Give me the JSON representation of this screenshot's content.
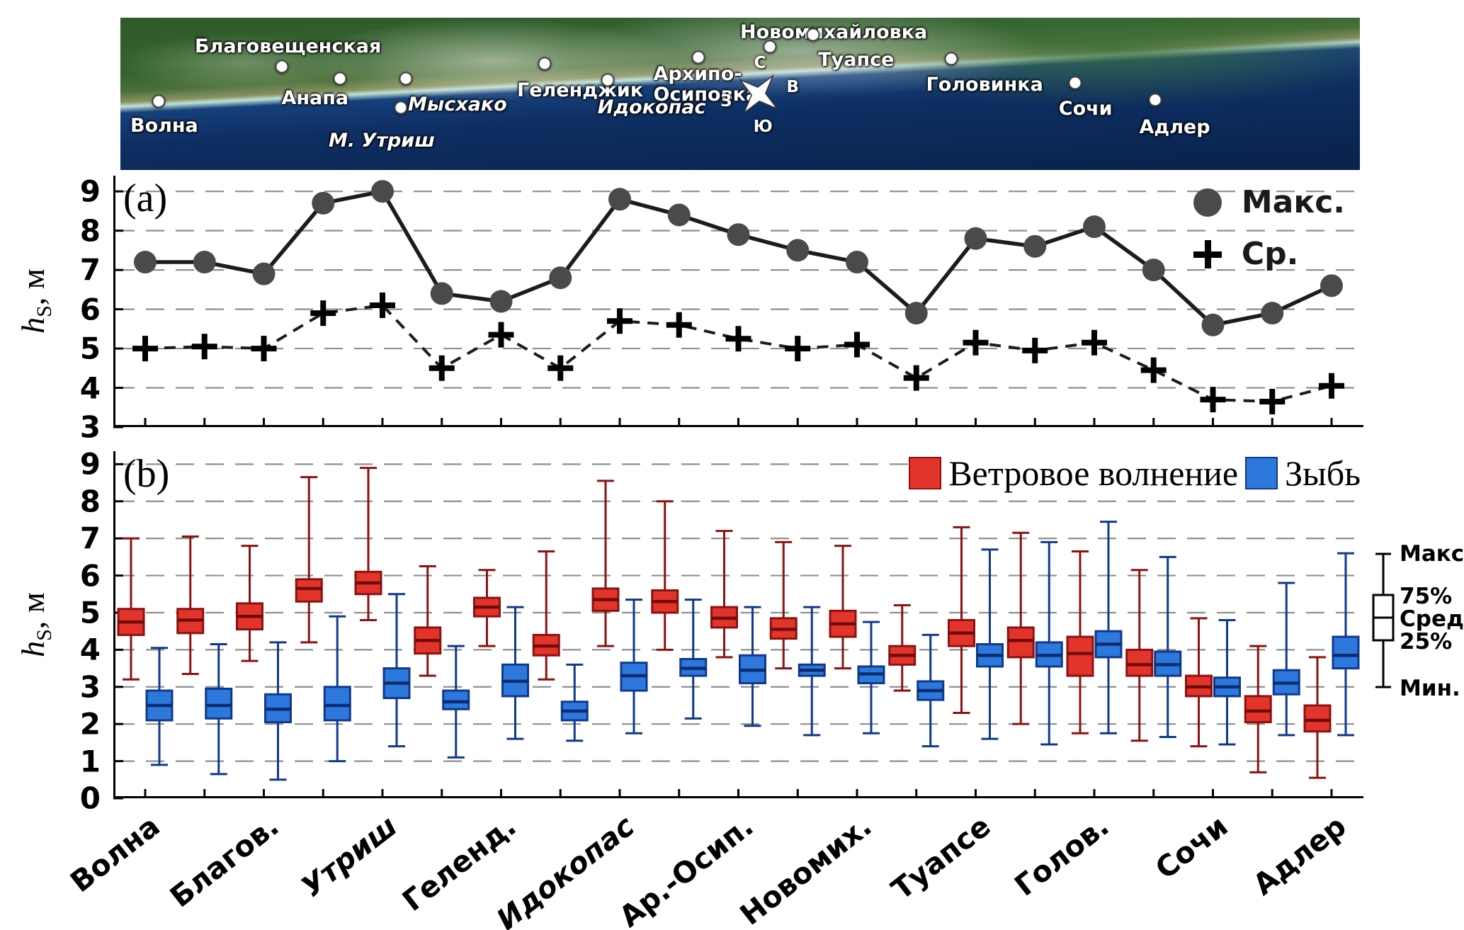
{
  "figure": {
    "panel_a_tag": "(a)",
    "panel_b_tag": "(b)",
    "y_h": "h",
    "y_sub": "S",
    "y_rest": ", м"
  },
  "map": {
    "compass": {
      "n": "С",
      "e": "В",
      "s": "Ю",
      "w": "З"
    },
    "places": [
      {
        "name": "Волна",
        "label": [
          0.8,
          64
        ],
        "dot": [
          3.1,
          55
        ],
        "italic": false
      },
      {
        "name": "Благовещенская",
        "label": [
          6.0,
          12
        ],
        "dot": [
          13.0,
          32
        ],
        "italic": false
      },
      {
        "name": "Анапа",
        "label": [
          13.0,
          46
        ],
        "dot": [
          17.7,
          40
        ],
        "italic": false
      },
      {
        "name": "М. Утриш",
        "label": [
          16.8,
          74
        ],
        "dot": [
          22.6,
          59
        ],
        "italic": true
      },
      {
        "name": "Мысхако",
        "label": [
          23.2,
          50
        ],
        "dot": [
          23.0,
          40
        ],
        "italic": true
      },
      {
        "name": "Геленджик",
        "label": [
          32.0,
          41
        ],
        "dot": [
          34.2,
          30
        ],
        "italic": false
      },
      {
        "name": "Идокопас",
        "label": [
          38.5,
          52
        ],
        "dot": [
          39.3,
          41
        ],
        "italic": true
      },
      {
        "name": "Архипо-\nОсиповка",
        "label": [
          43.0,
          30
        ],
        "dot": [
          46.6,
          26
        ],
        "italic": false
      },
      {
        "name": "Новомихайловка",
        "label": [
          50.0,
          3
        ],
        "dot": [
          52.4,
          19
        ],
        "italic": false
      },
      {
        "name": "Туапсе",
        "label": [
          56.3,
          21
        ],
        "dot": [
          55.9,
          11
        ],
        "italic": false
      },
      {
        "name": "Головинка",
        "label": [
          65.0,
          37
        ],
        "dot": [
          67.0,
          27
        ],
        "italic": false
      },
      {
        "name": "Сочи",
        "label": [
          75.7,
          53
        ],
        "dot": [
          77.0,
          43
        ],
        "italic": false
      },
      {
        "name": "Адлер",
        "label": [
          82.2,
          65
        ],
        "dot": [
          83.5,
          54
        ],
        "italic": false
      }
    ]
  },
  "boxkey": {
    "labels": [
      "Макс.",
      "75%",
      "Сред.",
      "25%",
      "Мин."
    ]
  },
  "chart_data": [
    {
      "id": "panel_a",
      "type": "line",
      "title": "(a)",
      "ylabel": "hS, м",
      "ylim": [
        3,
        9
      ],
      "yticks": [
        3,
        4,
        5,
        6,
        7,
        8,
        9
      ],
      "grid": "dashed-horizontal",
      "legend_position": "top-right",
      "x_note": "21 stations along the coast, aligned with panel (b) box-plot stations",
      "series": [
        {
          "name": "Макс.",
          "marker": "circle",
          "line": "solid",
          "color": "#4a4a4a",
          "values": [
            7.2,
            7.2,
            6.9,
            8.7,
            9.0,
            6.4,
            6.2,
            6.8,
            8.8,
            8.4,
            7.9,
            7.5,
            7.2,
            5.9,
            7.8,
            7.6,
            8.1,
            7.0,
            5.6,
            5.9,
            6.6
          ]
        },
        {
          "name": "Ср.",
          "marker": "plus",
          "line": "dashed",
          "color": "#000000",
          "values": [
            5.0,
            5.05,
            5.0,
            5.9,
            6.1,
            4.5,
            5.35,
            4.5,
            5.7,
            5.6,
            5.25,
            5.0,
            5.1,
            4.25,
            5.15,
            4.95,
            5.15,
            4.45,
            3.7,
            3.65,
            4.05
          ]
        }
      ]
    },
    {
      "id": "panel_b",
      "type": "boxplot",
      "title": "(b)",
      "ylabel": "hS, м",
      "ylim": [
        0,
        9
      ],
      "yticks": [
        0,
        1,
        2,
        3,
        4,
        5,
        6,
        7,
        8,
        9
      ],
      "grid": "dashed-horizontal",
      "legend_position": "top-right",
      "n_stations": 21,
      "label_every": 2,
      "box_value_order": [
        "min",
        "q25",
        "median",
        "q75",
        "max"
      ],
      "categories": [
        {
          "label": "Волна",
          "station": 0,
          "italic": false
        },
        {
          "label": "Благов.",
          "station": 2,
          "italic": false
        },
        {
          "label": "Утриш",
          "station": 4,
          "italic": true
        },
        {
          "label": "Геленд.",
          "station": 6,
          "italic": false
        },
        {
          "label": "Идокопас",
          "station": 8,
          "italic": true
        },
        {
          "label": "Ар.-Осип.",
          "station": 10,
          "italic": false
        },
        {
          "label": "Новомих.",
          "station": 12,
          "italic": false
        },
        {
          "label": "Туапсе",
          "station": 14,
          "italic": false
        },
        {
          "label": "Голов.",
          "station": 16,
          "italic": false
        },
        {
          "label": "Сочи",
          "station": 18,
          "italic": false
        },
        {
          "label": "Адлер",
          "station": 20,
          "italic": false
        }
      ],
      "series": [
        {
          "name": "Ветровое волнение",
          "color": "#e2342b",
          "edge": "#8c1210",
          "median": "#6f0c0a",
          "boxes": [
            [
              3.2,
              4.4,
              4.75,
              5.1,
              7.0
            ],
            [
              3.35,
              4.45,
              4.8,
              5.1,
              7.05
            ],
            [
              3.7,
              4.55,
              4.9,
              5.25,
              6.8
            ],
            [
              4.2,
              5.3,
              5.65,
              5.9,
              8.65
            ],
            [
              4.8,
              5.5,
              5.8,
              6.1,
              8.9
            ],
            [
              3.3,
              3.9,
              4.25,
              4.6,
              6.25
            ],
            [
              4.1,
              4.9,
              5.15,
              5.4,
              6.15
            ],
            [
              3.2,
              3.85,
              4.1,
              4.4,
              6.65
            ],
            [
              4.1,
              5.05,
              5.35,
              5.65,
              8.55
            ],
            [
              4.0,
              5.0,
              5.3,
              5.6,
              8.0
            ],
            [
              3.8,
              4.6,
              4.85,
              5.15,
              7.2
            ],
            [
              3.5,
              4.3,
              4.55,
              4.85,
              6.9
            ],
            [
              3.5,
              4.35,
              4.7,
              5.05,
              6.8
            ],
            [
              2.9,
              3.6,
              3.85,
              4.1,
              5.2
            ],
            [
              2.3,
              4.1,
              4.45,
              4.8,
              7.3
            ],
            [
              2.0,
              3.8,
              4.25,
              4.6,
              7.15
            ],
            [
              1.75,
              3.3,
              3.9,
              4.35,
              6.65
            ],
            [
              1.55,
              3.3,
              3.6,
              4.0,
              6.15
            ],
            [
              1.4,
              2.75,
              3.0,
              3.3,
              4.85
            ],
            [
              0.7,
              2.05,
              2.35,
              2.75,
              4.1
            ],
            [
              0.55,
              1.8,
              2.1,
              2.5,
              3.8
            ]
          ]
        },
        {
          "name": "Зыбь",
          "color": "#2d78dd",
          "edge": "#10398c",
          "median": "#0b2c6e",
          "boxes": [
            [
              0.9,
              2.1,
              2.5,
              2.9,
              4.05
            ],
            [
              0.65,
              2.15,
              2.5,
              2.95,
              4.15
            ],
            [
              0.5,
              2.05,
              2.4,
              2.8,
              4.2
            ],
            [
              1.0,
              2.1,
              2.5,
              3.0,
              4.9
            ],
            [
              1.4,
              2.7,
              3.1,
              3.5,
              5.5
            ],
            [
              1.1,
              2.4,
              2.6,
              2.9,
              4.1
            ],
            [
              1.6,
              2.75,
              3.15,
              3.6,
              5.15
            ],
            [
              1.55,
              2.1,
              2.35,
              2.6,
              3.6
            ],
            [
              1.75,
              2.9,
              3.3,
              3.65,
              5.35
            ],
            [
              2.15,
              3.3,
              3.5,
              3.75,
              5.35
            ],
            [
              1.95,
              3.1,
              3.45,
              3.85,
              5.15
            ],
            [
              1.7,
              3.3,
              3.45,
              3.6,
              5.15
            ],
            [
              1.75,
              3.1,
              3.35,
              3.55,
              4.75
            ],
            [
              1.4,
              2.65,
              2.9,
              3.15,
              4.4
            ],
            [
              1.6,
              3.55,
              3.85,
              4.15,
              6.7
            ],
            [
              1.45,
              3.55,
              3.85,
              4.2,
              6.9
            ],
            [
              1.75,
              3.8,
              4.15,
              4.5,
              7.45
            ],
            [
              1.65,
              3.3,
              3.6,
              3.95,
              6.5
            ],
            [
              1.45,
              2.75,
              3.0,
              3.25,
              4.8
            ],
            [
              1.7,
              2.8,
              3.1,
              3.45,
              5.8
            ],
            [
              1.7,
              3.5,
              3.85,
              4.35,
              6.6
            ]
          ]
        }
      ]
    }
  ]
}
